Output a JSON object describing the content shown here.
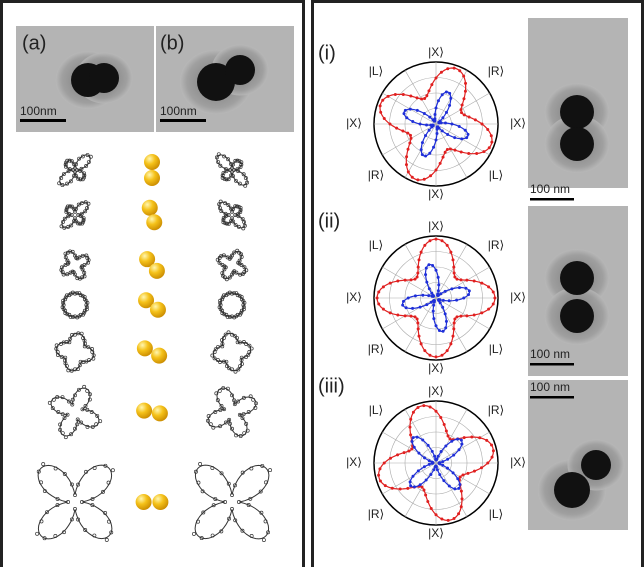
{
  "left_panel": {
    "labels": [
      "(a)",
      "(b)"
    ],
    "scale_bars": [
      "100nm",
      "100nm"
    ]
  },
  "right_panel": {
    "rows": [
      {
        "label": "(i)",
        "states": {
          "top": "|X⟩",
          "upper_left": "|L⟩",
          "upper_right": "|R⟩",
          "left": "|X⟩",
          "right": "|X⟩",
          "lower_left": "|R⟩",
          "lower_right": "|L⟩",
          "bottom": "|X⟩"
        },
        "scale_bar": "100 nm"
      },
      {
        "label": "(ii)",
        "states": {
          "top": "|X⟩",
          "upper_left": "|L⟩",
          "upper_right": "|R⟩",
          "left": "|X⟩",
          "right": "|X⟩",
          "lower_left": "|R⟩",
          "lower_right": "|L⟩",
          "bottom": "|X⟩"
        },
        "scale_bar": "100 nm"
      },
      {
        "label": "(iii)",
        "states": {
          "top": "|X⟩",
          "upper_left": "|L⟩",
          "upper_right": "|R⟩",
          "left": "|X⟩",
          "right": "|X⟩",
          "lower_left": "|R⟩",
          "lower_right": "|L⟩",
          "bottom": "|X⟩"
        },
        "scale_bar": "100 nm"
      }
    ]
  }
}
